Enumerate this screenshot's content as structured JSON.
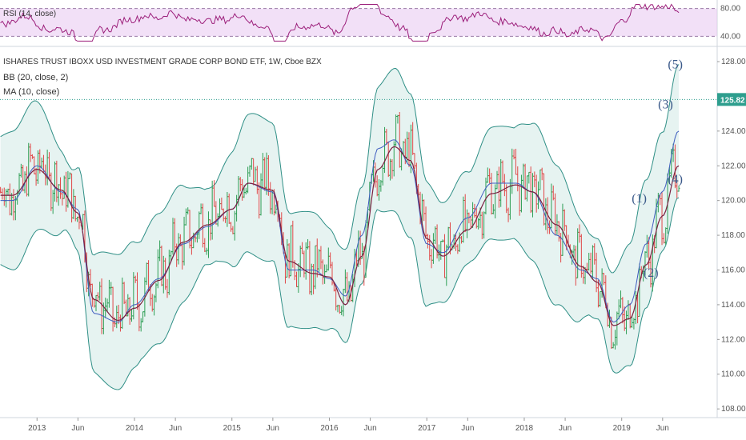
{
  "rsi_panel": {
    "indicator_label": "RSI (14, close)",
    "levels": [
      "80.00",
      "40.00"
    ],
    "line_color": "#9c1f7b",
    "band_color": "#e8c6f0"
  },
  "main_panel": {
    "title": "ISHARES TRUST IBOXX USD INVESTMENT GRADE CORP BOND ETF, 1W, Cboe BZX",
    "bb_label": "BB (20, close, 2)",
    "ma_label": "MA (10, close)",
    "last_price": "125.82",
    "y_ticks": [
      "128.00",
      "126.00",
      "124.00",
      "122.00",
      "120.00",
      "118.00",
      "116.00",
      "114.00",
      "112.00",
      "110.00",
      "108.00"
    ],
    "x_ticks": [
      "2013",
      "Jun",
      "2014",
      "Jun",
      "2015",
      "Jun",
      "2016",
      "Jun",
      "2017",
      "Jun",
      "2018",
      "Jun",
      "2019",
      "Jun"
    ],
    "wave_labels": [
      "(1)",
      "(2)",
      "(3)",
      "(4)",
      "(5)"
    ],
    "colors": {
      "bb_band": "#2f8f86",
      "bb_fill": "#e6f3f1",
      "ma": "#7a2040",
      "bb_mid": "#3d5bbf",
      "up_bar": "#2e9e55",
      "down_bar": "#e04848",
      "price_line": "#2e9e8e",
      "wave": "#3b5a8a"
    }
  },
  "chart_data": {
    "type": "line",
    "title": "ISHARES TRUST IBOXX USD INVESTMENT GRADE CORP BOND ETF, 1W, Cboe BZX",
    "x": [
      "2012-10",
      "2013-01",
      "2013-04",
      "2013-06",
      "2013-08",
      "2013-11",
      "2014-01",
      "2014-04",
      "2014-07",
      "2014-10",
      "2015-01",
      "2015-03",
      "2015-06",
      "2015-08",
      "2015-11",
      "2016-01",
      "2016-03",
      "2016-05",
      "2016-07",
      "2016-09",
      "2016-11",
      "2017-01",
      "2017-03",
      "2017-06",
      "2017-09",
      "2017-12",
      "2018-02",
      "2018-05",
      "2018-08",
      "2018-10",
      "2018-12",
      "2019-02",
      "2019-04",
      "2019-06",
      "2019-08"
    ],
    "series": [
      {
        "name": "BB (20, close, 2)",
        "values": [
          120.0,
          122.0,
          120.5,
          119.5,
          113.5,
          113.0,
          114.0,
          115.5,
          117.5,
          118.5,
          119.5,
          121.0,
          120.5,
          116.0,
          116.0,
          115.5,
          114.5,
          118.0,
          123.0,
          123.5,
          122.0,
          117.5,
          117.0,
          119.0,
          121.0,
          121.0,
          120.5,
          118.0,
          116.0,
          115.5,
          113.0,
          114.0,
          117.5,
          120.5,
          124.0
        ]
      },
      {
        "name": "MA (10, close)",
        "values": [
          120.5,
          122.0,
          120.8,
          119.5,
          114.5,
          113.3,
          114.0,
          115.6,
          117.8,
          118.8,
          119.7,
          121.2,
          120.8,
          116.7,
          116.0,
          115.8,
          114.2,
          117.0,
          122.0,
          123.3,
          122.5,
          118.0,
          117.0,
          118.5,
          120.6,
          121.1,
          120.7,
          118.8,
          116.4,
          115.5,
          113.0,
          113.4,
          116.5,
          119.3,
          122.2
        ]
      }
    ],
    "last_price": 125.82,
    "ylim": [
      107.5,
      128.6
    ],
    "rsi_levels": [
      80,
      40
    ],
    "annotations": [
      "(1)",
      "(2)",
      "(3)",
      "(4)",
      "(5)"
    ],
    "grid": false
  }
}
